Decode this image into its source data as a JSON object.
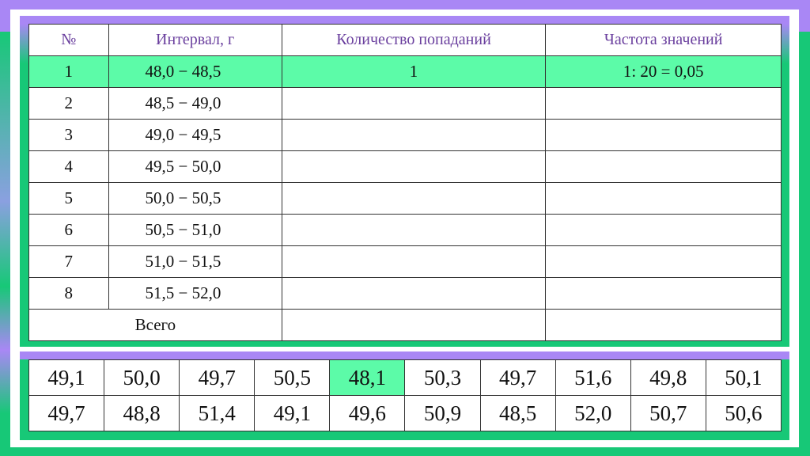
{
  "interval_table": {
    "headers": [
      "№",
      "Интервал, г",
      "Количество попаданий",
      "Частота значений"
    ],
    "rows": [
      {
        "n": "1",
        "interval": "48,0  −  48,5",
        "count": "1",
        "freq": "1: 20 = 0,05",
        "highlighted": true
      },
      {
        "n": "2",
        "interval": "48,5  −  49,0",
        "count": "",
        "freq": ""
      },
      {
        "n": "3",
        "interval": "49,0  −  49,5",
        "count": "",
        "freq": ""
      },
      {
        "n": "4",
        "interval": "49,5  −  50,0",
        "count": "",
        "freq": ""
      },
      {
        "n": "5",
        "interval": "50,0  −  50,5",
        "count": "",
        "freq": ""
      },
      {
        "n": "6",
        "interval": "50,5  −  51,0",
        "count": "",
        "freq": ""
      },
      {
        "n": "7",
        "interval": "51,0  −  51,5",
        "count": "",
        "freq": ""
      },
      {
        "n": "8",
        "interval": "51,5  −  52,0",
        "count": "",
        "freq": ""
      }
    ],
    "total_label": "Всего"
  },
  "values_table": {
    "rows": [
      [
        "49,1",
        "50,0",
        "49,7",
        "50,5",
        "48,1",
        "50,3",
        "49,7",
        "51,6",
        "49,8",
        "50,1"
      ],
      [
        "49,7",
        "48,8",
        "51,4",
        "49,1",
        "49,6",
        "50,9",
        "48,5",
        "52,0",
        "50,7",
        "50,6"
      ]
    ],
    "highlighted_value": "48,1"
  },
  "colors": {
    "purple": "#a987f5",
    "green": "#17c877",
    "highlight": "#5cfba8",
    "header_text": "#6a3f9e"
  }
}
